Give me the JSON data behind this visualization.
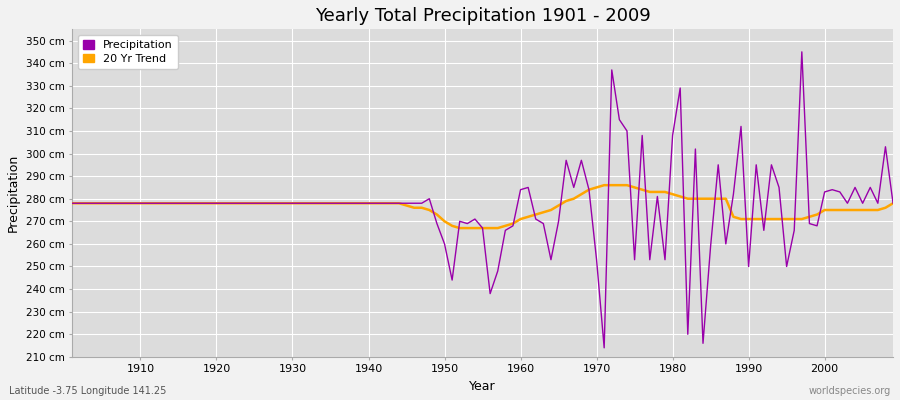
{
  "title": "Yearly Total Precipitation 1901 - 2009",
  "xlabel": "Year",
  "ylabel": "Precipitation",
  "subtitle": "Latitude -3.75 Longitude 141.25",
  "watermark": "worldspecies.org",
  "ylim": [
    210,
    355
  ],
  "xlim": [
    1901,
    2009
  ],
  "legend_labels": [
    "Precipitation",
    "20 Yr Trend"
  ],
  "precip_color": "#9900AA",
  "trend_color": "#FFA500",
  "fig_bg_color": "#F0F0F0",
  "plot_bg_color": "#DCDCDC",
  "grid_color": "#FFFFFF",
  "years": [
    1901,
    1902,
    1903,
    1904,
    1905,
    1906,
    1907,
    1908,
    1909,
    1910,
    1911,
    1912,
    1913,
    1914,
    1915,
    1916,
    1917,
    1918,
    1919,
    1920,
    1921,
    1922,
    1923,
    1924,
    1925,
    1926,
    1927,
    1928,
    1929,
    1930,
    1931,
    1932,
    1933,
    1934,
    1935,
    1936,
    1937,
    1938,
    1939,
    1940,
    1941,
    1942,
    1943,
    1944,
    1945,
    1946,
    1947,
    1948,
    1949,
    1950,
    1951,
    1952,
    1953,
    1954,
    1955,
    1956,
    1957,
    1958,
    1959,
    1960,
    1961,
    1962,
    1963,
    1964,
    1965,
    1966,
    1967,
    1968,
    1969,
    1970,
    1971,
    1972,
    1973,
    1974,
    1975,
    1976,
    1977,
    1978,
    1979,
    1980,
    1981,
    1982,
    1983,
    1984,
    1985,
    1986,
    1987,
    1988,
    1989,
    1990,
    1991,
    1992,
    1993,
    1994,
    1995,
    1996,
    1997,
    1998,
    1999,
    2000,
    2001,
    2002,
    2003,
    2004,
    2005,
    2006,
    2007,
    2008,
    2009
  ],
  "precipitation": [
    278,
    278,
    278,
    278,
    278,
    278,
    278,
    278,
    278,
    278,
    278,
    278,
    278,
    278,
    278,
    278,
    278,
    278,
    278,
    278,
    278,
    278,
    278,
    278,
    278,
    278,
    278,
    278,
    278,
    278,
    278,
    278,
    278,
    278,
    278,
    278,
    278,
    278,
    278,
    278,
    278,
    278,
    278,
    278,
    278,
    278,
    278,
    280,
    269,
    260,
    244,
    270,
    269,
    271,
    267,
    238,
    248,
    266,
    268,
    284,
    285,
    271,
    269,
    253,
    270,
    297,
    285,
    297,
    284,
    253,
    214,
    337,
    315,
    310,
    253,
    308,
    253,
    281,
    253,
    308,
    329,
    220,
    302,
    216,
    259,
    295,
    260,
    282,
    312,
    250,
    295,
    266,
    295,
    285,
    250,
    266,
    345,
    269,
    268,
    283,
    284,
    283,
    278,
    285,
    278,
    285,
    278,
    303,
    278
  ],
  "trend": [
    278,
    278,
    278,
    278,
    278,
    278,
    278,
    278,
    278,
    278,
    278,
    278,
    278,
    278,
    278,
    278,
    278,
    278,
    278,
    278,
    278,
    278,
    278,
    278,
    278,
    278,
    278,
    278,
    278,
    278,
    278,
    278,
    278,
    278,
    278,
    278,
    278,
    278,
    278,
    278,
    278,
    278,
    278,
    278,
    277,
    276,
    276,
    275,
    273,
    270,
    268,
    267,
    267,
    267,
    267,
    267,
    267,
    268,
    269,
    271,
    272,
    273,
    274,
    275,
    277,
    279,
    280,
    282,
    284,
    285,
    286,
    286,
    286,
    286,
    285,
    284,
    283,
    283,
    283,
    282,
    281,
    280,
    280,
    280,
    280,
    280,
    280,
    272,
    271,
    271,
    271,
    271,
    271,
    271,
    271,
    271,
    271,
    272,
    273,
    275,
    275,
    275,
    275,
    275,
    275,
    275,
    275,
    276,
    278
  ]
}
